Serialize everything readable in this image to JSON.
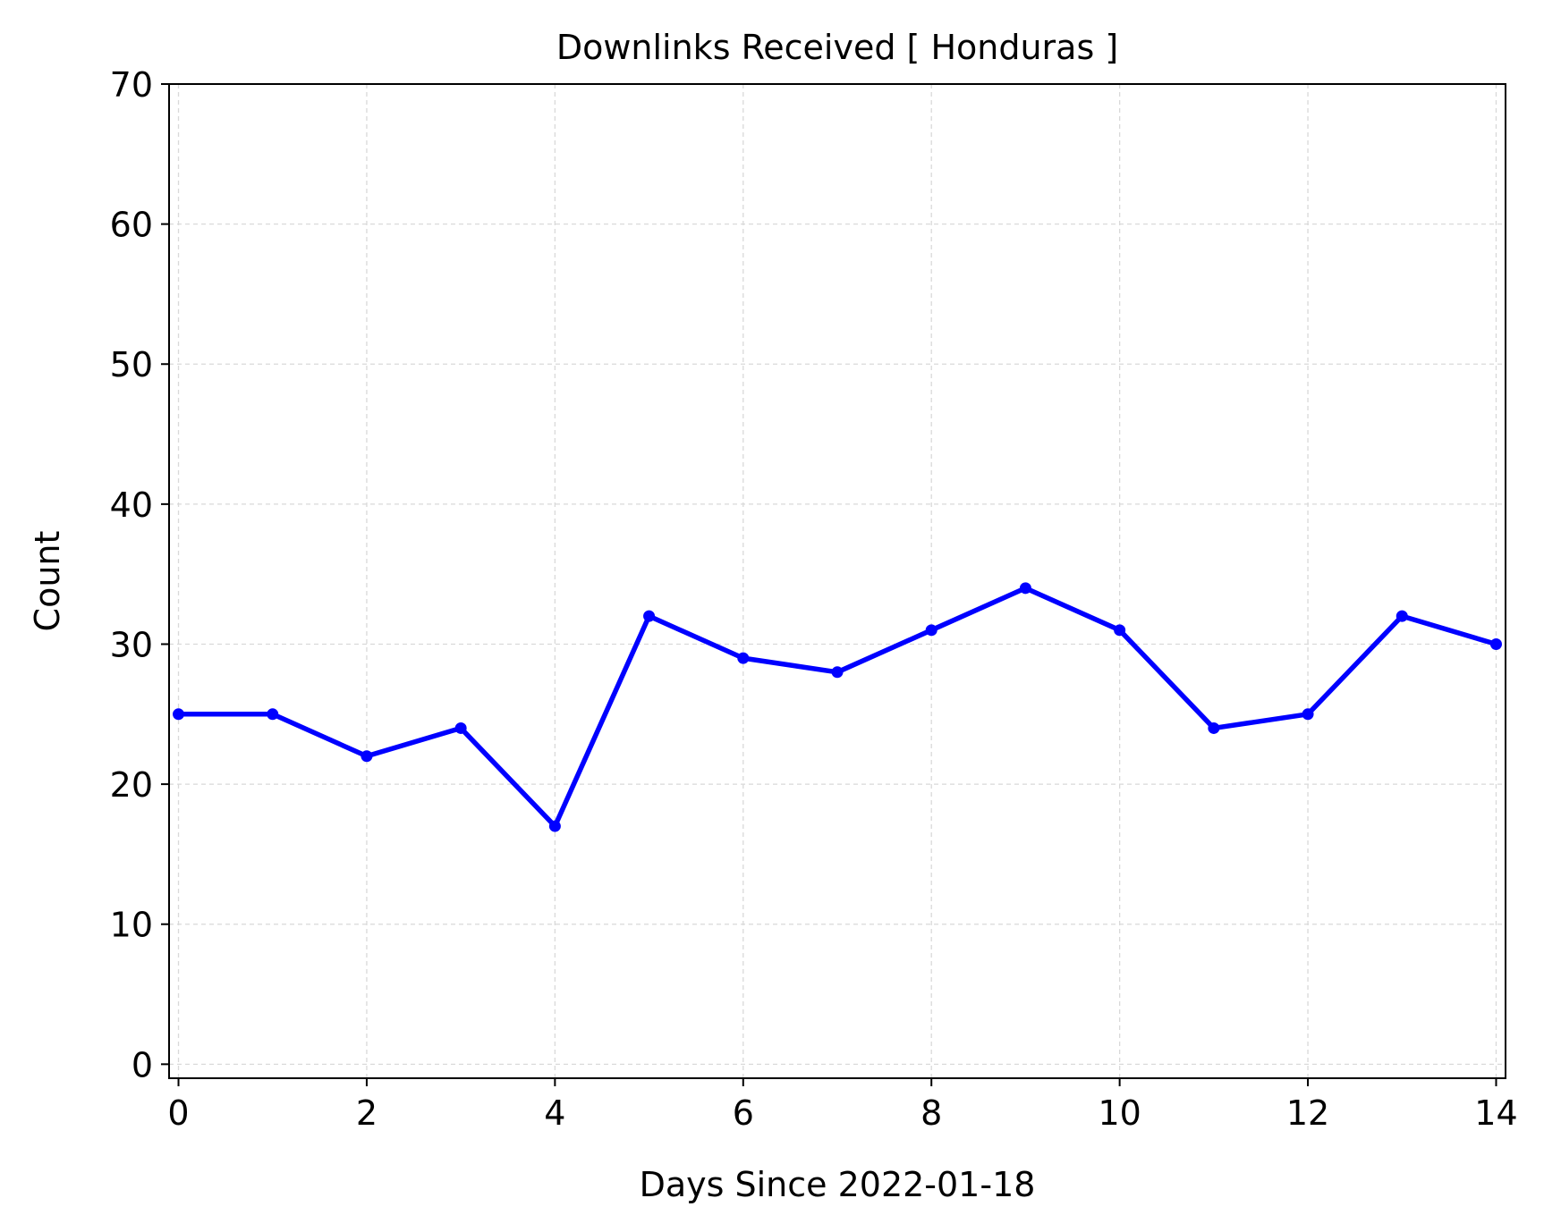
{
  "chart_data": {
    "type": "line",
    "title": "Downlinks Received [ Honduras ]",
    "xlabel": "Days Since 2022-01-18",
    "ylabel": "Count",
    "xlim": [
      -0.1,
      14.1
    ],
    "ylim": [
      -1,
      70
    ],
    "xticks": [
      0,
      2,
      4,
      6,
      8,
      10,
      12,
      14
    ],
    "yticks": [
      0,
      10,
      20,
      30,
      40,
      50,
      60,
      70
    ],
    "grid": true,
    "series": [
      {
        "color": "#0000ff",
        "x": [
          0,
          1,
          2,
          3,
          4,
          5,
          6,
          7,
          8,
          9,
          10,
          11,
          12,
          13,
          14
        ],
        "y": [
          25,
          25,
          22,
          24,
          17,
          32,
          29,
          28,
          31,
          34,
          31,
          24,
          25,
          32,
          30
        ]
      }
    ]
  }
}
